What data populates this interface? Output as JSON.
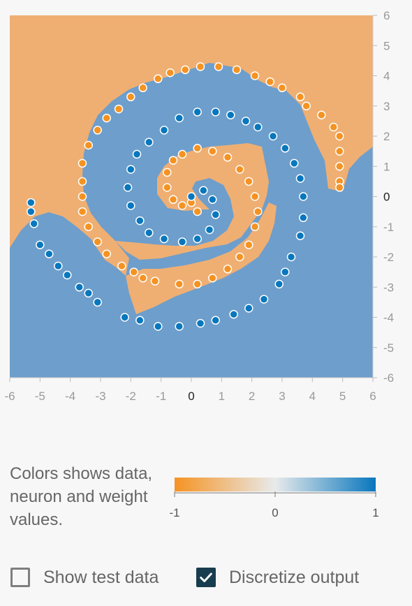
{
  "plot": {
    "x_ticks": [
      "-6",
      "-5",
      "-4",
      "-3",
      "-2",
      "-1",
      "0",
      "1",
      "2",
      "3",
      "4",
      "5",
      "6"
    ],
    "y_ticks": [
      "6",
      "5",
      "4",
      "3",
      "2",
      "1",
      "0",
      "-1",
      "-2",
      "-3",
      "-4",
      "-5",
      "-6"
    ],
    "colors": {
      "negative": "#f59322",
      "positive": "#0877bd",
      "region_negative": "#efaf73",
      "region_positive": "#6e9ecb"
    }
  },
  "legend": {
    "text": "Colors shows data, neuron and weight values.",
    "min_label": "-1",
    "mid_label": "0",
    "max_label": "1"
  },
  "options": {
    "show_test_data": {
      "label": "Show test data",
      "checked": false
    },
    "discretize_output": {
      "label": "Discretize output",
      "checked": true
    }
  },
  "chart_data": {
    "type": "scatter",
    "xlim": [
      -6,
      6
    ],
    "ylim": [
      -6,
      6
    ],
    "grid": false,
    "series": [
      {
        "color": "#f59322",
        "value": -1,
        "points": [
          [
            0.2,
            -0.5
          ],
          [
            0.0,
            -0.2
          ],
          [
            -0.3,
            -0.3
          ],
          [
            -0.6,
            -0.1
          ],
          [
            -0.8,
            0.3
          ],
          [
            -0.8,
            0.8
          ],
          [
            -0.6,
            1.2
          ],
          [
            -0.3,
            1.4
          ],
          [
            0.2,
            1.6
          ],
          [
            0.7,
            1.5
          ],
          [
            1.2,
            1.3
          ],
          [
            1.6,
            0.9
          ],
          [
            1.9,
            0.5
          ],
          [
            2.1,
            0.0
          ],
          [
            2.2,
            -0.5
          ],
          [
            2.1,
            -1.0
          ],
          [
            1.9,
            -1.6
          ],
          [
            1.6,
            -2.0
          ],
          [
            1.2,
            -2.4
          ],
          [
            0.7,
            -2.7
          ],
          [
            0.2,
            -2.9
          ],
          [
            -0.4,
            -2.9
          ],
          [
            -1.2,
            -2.8
          ],
          [
            -1.6,
            -2.7
          ],
          [
            -1.9,
            -2.5
          ],
          [
            -2.3,
            -2.3
          ],
          [
            -2.8,
            -1.9
          ],
          [
            -3.1,
            -1.5
          ],
          [
            -3.4,
            -1.0
          ],
          [
            -3.6,
            -0.5
          ],
          [
            -3.6,
            0.0
          ],
          [
            -3.6,
            0.5
          ],
          [
            -3.6,
            1.1
          ],
          [
            -3.4,
            1.7
          ],
          [
            -3.1,
            2.2
          ],
          [
            -2.8,
            2.6
          ],
          [
            -2.4,
            2.9
          ],
          [
            -2.0,
            3.3
          ],
          [
            -1.6,
            3.6
          ],
          [
            -1.1,
            3.9
          ],
          [
            -0.7,
            4.1
          ],
          [
            -0.2,
            4.2
          ],
          [
            0.3,
            4.3
          ],
          [
            0.9,
            4.3
          ],
          [
            1.5,
            4.2
          ],
          [
            2.1,
            4.0
          ],
          [
            2.6,
            3.8
          ],
          [
            3.0,
            3.6
          ],
          [
            3.6,
            3.3
          ],
          [
            3.8,
            3.0
          ],
          [
            4.3,
            2.7
          ],
          [
            4.7,
            2.3
          ],
          [
            4.9,
            2.0
          ],
          [
            4.9,
            1.5
          ],
          [
            4.9,
            1.0
          ],
          [
            4.9,
            0.5
          ],
          [
            4.9,
            0.3
          ]
        ]
      },
      {
        "color": "#0877bd",
        "value": 1,
        "points": [
          [
            0.0,
            0.0
          ],
          [
            0.4,
            0.2
          ],
          [
            0.7,
            -0.1
          ],
          [
            0.8,
            -0.6
          ],
          [
            0.6,
            -1.1
          ],
          [
            0.2,
            -1.4
          ],
          [
            -0.3,
            -1.5
          ],
          [
            -0.9,
            -1.4
          ],
          [
            -1.4,
            -1.2
          ],
          [
            -1.7,
            -0.8
          ],
          [
            -2.0,
            -0.3
          ],
          [
            -2.1,
            0.3
          ],
          [
            -2.0,
            0.9
          ],
          [
            -1.8,
            1.4
          ],
          [
            -1.4,
            1.8
          ],
          [
            -0.9,
            2.2
          ],
          [
            -0.4,
            2.6
          ],
          [
            0.2,
            2.8
          ],
          [
            0.8,
            2.8
          ],
          [
            1.3,
            2.7
          ],
          [
            1.8,
            2.5
          ],
          [
            2.2,
            2.3
          ],
          [
            2.7,
            2.0
          ],
          [
            3.1,
            1.6
          ],
          [
            3.4,
            1.1
          ],
          [
            3.6,
            0.6
          ],
          [
            3.7,
            0.0
          ],
          [
            3.7,
            -0.7
          ],
          [
            3.6,
            -1.3
          ],
          [
            3.3,
            -2.0
          ],
          [
            3.1,
            -2.5
          ],
          [
            2.9,
            -2.9
          ],
          [
            2.4,
            -3.4
          ],
          [
            1.9,
            -3.7
          ],
          [
            1.4,
            -3.9
          ],
          [
            0.8,
            -4.1
          ],
          [
            0.3,
            -4.2
          ],
          [
            -0.4,
            -4.3
          ],
          [
            -1.1,
            -4.3
          ],
          [
            -1.7,
            -4.1
          ],
          [
            -2.2,
            -4.0
          ],
          [
            -3.1,
            -3.5
          ],
          [
            -3.4,
            -3.2
          ],
          [
            -3.7,
            -3.0
          ],
          [
            -4.1,
            -2.6
          ],
          [
            -4.4,
            -2.3
          ],
          [
            -4.7,
            -1.9
          ],
          [
            -5.0,
            -1.6
          ],
          [
            -5.2,
            -0.9
          ],
          [
            -5.3,
            -0.5
          ],
          [
            -5.3,
            -0.2
          ]
        ]
      }
    ]
  }
}
